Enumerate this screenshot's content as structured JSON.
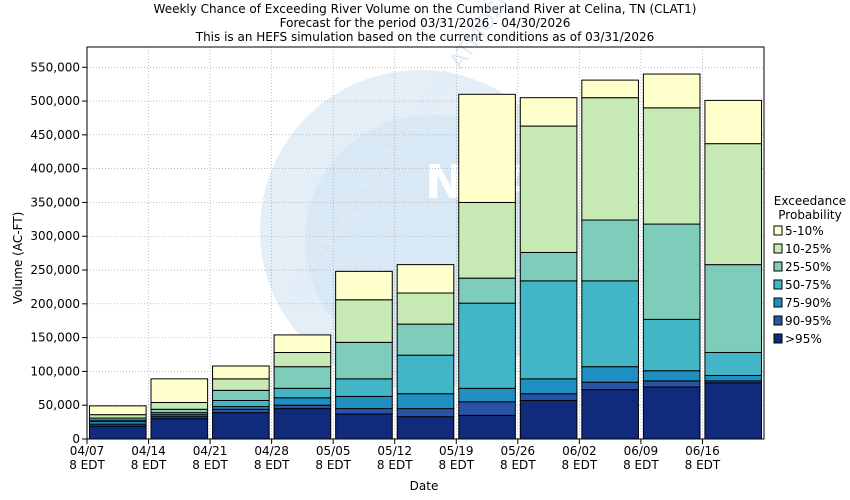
{
  "title": {
    "line1": "Weekly Chance of Exceeding River Volume on the Cumberland River at Celina, TN (CLAT1)",
    "line2": "Forecast for the period 03/31/2026 - 04/30/2026",
    "line3": "This is an HEFS simulation based on the current conditions as of 03/31/2026"
  },
  "watermark": {
    "text": "NOAA",
    "ring_text": "NATIONAL OCEANIC AND ATMOSPHERIC"
  },
  "chart_data": {
    "type": "bar",
    "stacked": true,
    "xlabel": "Date",
    "ylabel": "Volume (AC-FT)",
    "ylim": [
      0,
      580000
    ],
    "yticks": [
      0,
      50000,
      100000,
      150000,
      200000,
      250000,
      300000,
      350000,
      400000,
      450000,
      500000,
      550000
    ],
    "ytick_labels": [
      "0",
      "50,000",
      "100,000",
      "150,000",
      "200,000",
      "250,000",
      "300,000",
      "350,000",
      "400,000",
      "450,000",
      "500,000",
      "550,000"
    ],
    "xtick_labels": [
      {
        "date": "04/07",
        "tz": "8 EDT"
      },
      {
        "date": "04/14",
        "tz": "8 EDT"
      },
      {
        "date": "04/21",
        "tz": "8 EDT"
      },
      {
        "date": "04/28",
        "tz": "8 EDT"
      },
      {
        "date": "05/05",
        "tz": "8 EDT"
      },
      {
        "date": "05/12",
        "tz": "8 EDT"
      },
      {
        "date": "05/19",
        "tz": "8 EDT"
      },
      {
        "date": "05/26",
        "tz": "8 EDT"
      },
      {
        "date": "06/02",
        "tz": "8 EDT"
      },
      {
        "date": "06/09",
        "tz": "8 EDT"
      },
      {
        "date": "06/16",
        "tz": "8 EDT"
      }
    ],
    "grid": true,
    "legend_title": "Exceedance Probability",
    "legend_position": "right",
    "series": [
      {
        "name": ">95%",
        "color": "#102a7c",
        "top_values": [
          19000,
          30000,
          39000,
          45000,
          37000,
          33000,
          35000,
          57000,
          73000,
          77000,
          83000
        ]
      },
      {
        "name": "90-95%",
        "color": "#2754a6",
        "top_values": [
          22000,
          33000,
          44000,
          50000,
          45000,
          45000,
          55000,
          67000,
          84000,
          86000,
          86000
        ]
      },
      {
        "name": "75-90%",
        "color": "#1f8fc1",
        "top_values": [
          26000,
          36000,
          48000,
          61000,
          63000,
          67000,
          75000,
          89000,
          107000,
          101000,
          94000
        ]
      },
      {
        "name": "50-75%",
        "color": "#42b6c6",
        "top_values": [
          28000,
          39000,
          57000,
          75000,
          89000,
          124000,
          201000,
          234000,
          234000,
          177000,
          128000
        ]
      },
      {
        "name": "25-50%",
        "color": "#7ecdbb",
        "top_values": [
          31000,
          44000,
          72000,
          107000,
          143000,
          170000,
          238000,
          276000,
          324000,
          318000,
          258000
        ]
      },
      {
        "name": "10-25%",
        "color": "#c7e9b4",
        "top_values": [
          36000,
          54000,
          89000,
          128000,
          206000,
          216000,
          350000,
          463000,
          505000,
          490000,
          437000
        ]
      },
      {
        "name": "5-10%",
        "color": "#ffffcc",
        "top_values": [
          49000,
          89000,
          108000,
          154000,
          248000,
          258000,
          510000,
          505000,
          531000,
          540000,
          501000
        ]
      }
    ]
  }
}
